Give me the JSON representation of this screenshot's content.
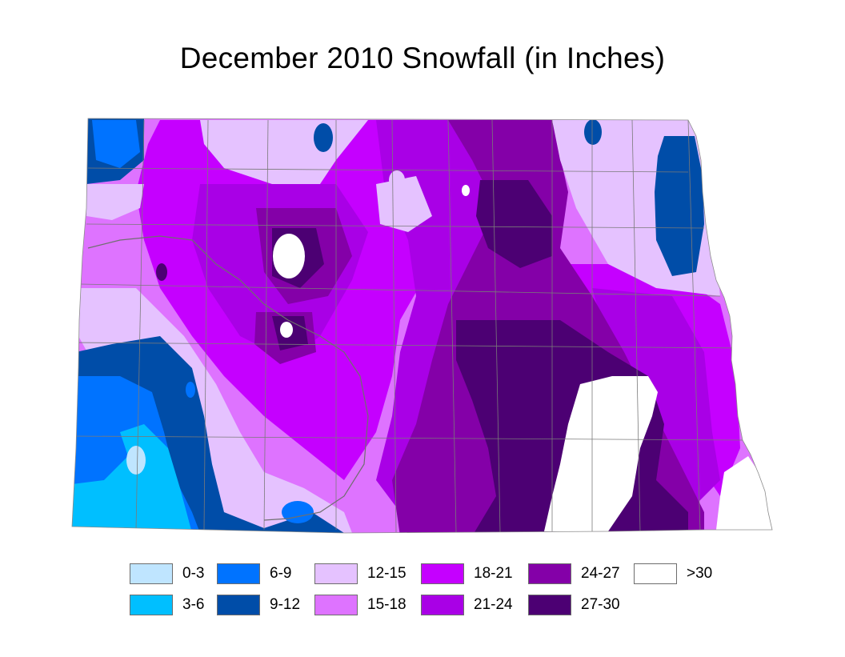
{
  "title": "December 2010 Snowfall (in Inches)",
  "legend": [
    {
      "label": "0-3",
      "color": "#bfe5ff"
    },
    {
      "label": "3-6",
      "color": "#00bfff"
    },
    {
      "label": "6-9",
      "color": "#0073ff"
    },
    {
      "label": "9-12",
      "color": "#004da8"
    },
    {
      "label": "12-15",
      "color": "#e5c2ff"
    },
    {
      "label": "15-18",
      "color": "#de73ff"
    },
    {
      "label": "18-21",
      "color": "#c500ff"
    },
    {
      "label": "21-24",
      "color": "#a900e6"
    },
    {
      "label": "24-27",
      "color": "#8400a8"
    },
    {
      "label": "27-30",
      "color": "#4c0073"
    },
    {
      "label": ">30",
      "color": "#ffffff"
    }
  ]
}
